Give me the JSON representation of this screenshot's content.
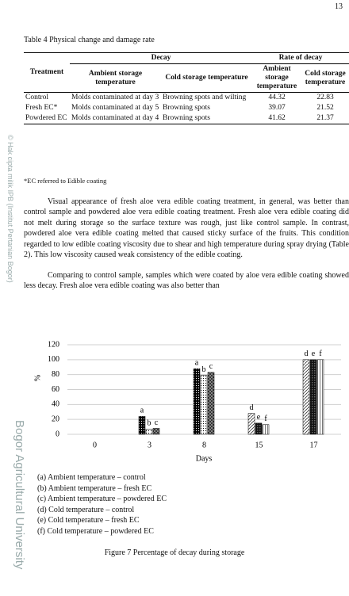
{
  "page_number": "13",
  "watermark": {
    "copyright": "© Hak cipta milik IPB (Institut Pertanian Bogor)",
    "university": "Bogor Agricultural University"
  },
  "table": {
    "caption": "Table 4 Physical change and damage rate",
    "header": {
      "treatment": "Treatment",
      "decay": "Decay",
      "rate": "Rate of decay",
      "ambient": "Ambient storage temperature",
      "cold": "Cold storage temperature",
      "rate_ambient": "Ambient storage temperature",
      "rate_cold": "Cold storage temperature"
    },
    "rows": [
      [
        "Control",
        "Molds contaminated at day 3",
        "Browning spots and wilting",
        44.32,
        22.83
      ],
      [
        "Fresh EC*",
        "Molds contaminated at day 5",
        "Browning spots",
        39.07,
        21.52
      ],
      [
        "Powdered EC",
        "Molds contaminated at day 4",
        "Browning spots",
        41.62,
        21.37
      ]
    ],
    "note": "*EC referred to Edible coating"
  },
  "paragraphs": [
    "Visual appearance of fresh aloe vera edible coating treatment, in general, was better than control sample and powdered aloe vera edible coating treatment. Fresh aloe vera edible coating did not melt during storage so the surface texture was rough, just like control sample. In contrast, powdered aloe vera edible coating melted that caused sticky surface of the fruits. This condition regarded to low edible coating viscosity due to shear and high temperature during spray drying (Table 2). This low viscosity caused weak consistency of the edible coating.",
    "Comparing to control sample, samples which were coated by aloe vera edible coating showed less decay. Fresh aloe vera edible coating was also better than"
  ],
  "chart_data": {
    "type": "bar",
    "x_label": "Days",
    "y_label": "%",
    "categories": [
      "0",
      "3",
      "8",
      "15",
      "17"
    ],
    "ylim": [
      0,
      120
    ],
    "yticks": [
      0,
      20,
      40,
      60,
      80,
      100,
      120
    ],
    "grid": true,
    "series": [
      {
        "name": "(a) Ambient temperature – control",
        "key": "a",
        "pattern": "dots-dark",
        "color": "#000000",
        "values": [
          null,
          24,
          88,
          null,
          null
        ]
      },
      {
        "name": "(b) Ambient temperature – fresh EC",
        "key": "b",
        "pattern": "dots-light",
        "color": "#ffffff",
        "values": [
          null,
          7,
          79,
          null,
          null
        ]
      },
      {
        "name": "(c) Ambient temperature – powdered EC",
        "key": "c",
        "pattern": "checker",
        "color": "#555555",
        "values": [
          null,
          8,
          83,
          null,
          null
        ]
      },
      {
        "name": "(d) Cold temperature – control",
        "key": "d",
        "pattern": "diagonal",
        "color": "#ffffff",
        "values": [
          null,
          null,
          null,
          28,
          100
        ]
      },
      {
        "name": "(e) Cold temperature – fresh EC",
        "key": "e",
        "pattern": "checker-dark",
        "color": "#222222",
        "values": [
          null,
          null,
          null,
          15,
          100
        ]
      },
      {
        "name": "(f) Cold temperature – powdered EC",
        "key": "f",
        "pattern": "vertical",
        "color": "#ffffff",
        "values": [
          null,
          null,
          null,
          13,
          100
        ]
      }
    ],
    "caption": "Figure 7 Percentage of decay during storage"
  }
}
